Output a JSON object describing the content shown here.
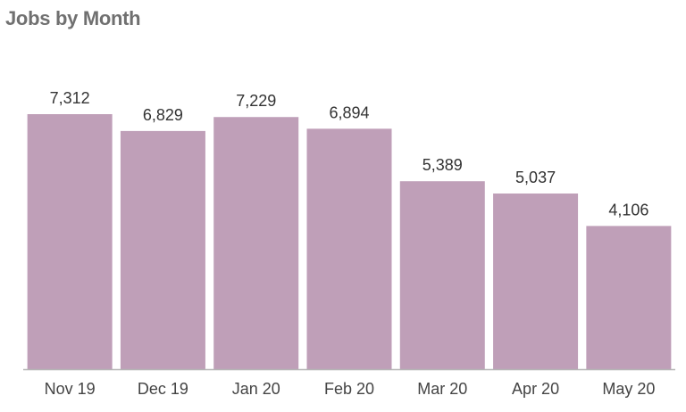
{
  "chart_data": {
    "type": "bar",
    "title": "Jobs by Month",
    "categories": [
      "Nov 19",
      "Dec 19",
      "Jan 20",
      "Feb 20",
      "Mar 20",
      "Apr 20",
      "May 20"
    ],
    "values": [
      7312,
      6829,
      7229,
      6894,
      5389,
      5037,
      4106
    ],
    "value_labels": [
      "7,312",
      "6,829",
      "7,229",
      "6,894",
      "5,389",
      "5,037",
      "4,106"
    ],
    "xlabel": "",
    "ylabel": "",
    "ylim": [
      0,
      7312
    ],
    "grid": false,
    "legend": "none",
    "colors": {
      "bar": "#bf9fb8",
      "axis": "#b5b5b5"
    }
  }
}
